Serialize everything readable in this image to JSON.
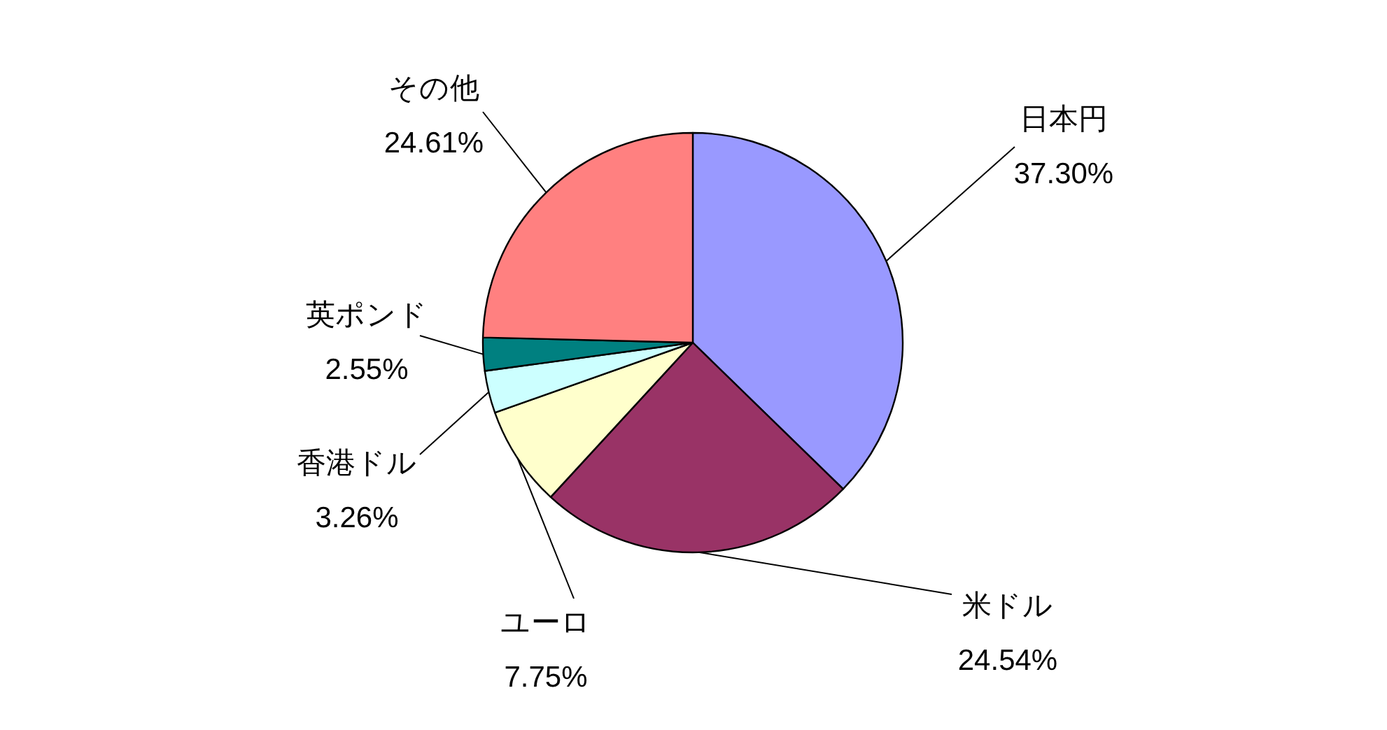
{
  "chart_data": {
    "type": "pie",
    "categories": [
      "日本円",
      "米ドル",
      "ユーロ",
      "香港ドル",
      "英ポンド",
      "その他"
    ],
    "values": [
      37.3,
      24.54,
      7.75,
      3.26,
      2.55,
      24.61
    ],
    "colors": [
      "#9999ff",
      "#993366",
      "#ffffcc",
      "#ccffff",
      "#008080",
      "#ff8080"
    ],
    "value_labels": [
      "37.30%",
      "24.54%",
      "7.75%",
      "3.26%",
      "2.55%",
      "24.61%"
    ]
  }
}
